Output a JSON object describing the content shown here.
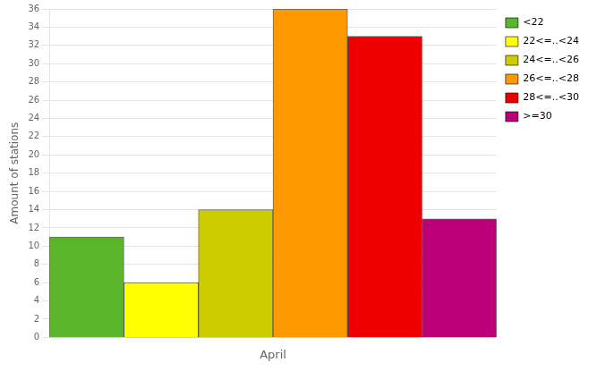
{
  "chart_data": {
    "type": "bar",
    "categories": [
      "<22",
      "22<=..<24",
      "24<=..<26",
      "26<=..<28",
      "28<=..<30",
      ">=30"
    ],
    "values": [
      11,
      6,
      14,
      36,
      33,
      13
    ],
    "colors": [
      "#5ab52a",
      "#ffff00",
      "#cccc00",
      "#ff9900",
      "#ee0000",
      "#bb0077"
    ],
    "xlabel": "April",
    "ylabel": "Amount of stations",
    "ylim": [
      0,
      36
    ],
    "yticks": [
      0,
      2,
      4,
      6,
      8,
      10,
      12,
      14,
      16,
      18,
      20,
      22,
      24,
      26,
      28,
      30,
      32,
      34,
      36
    ],
    "grid": true,
    "legend": "upper right",
    "tick_labels": "y"
  }
}
